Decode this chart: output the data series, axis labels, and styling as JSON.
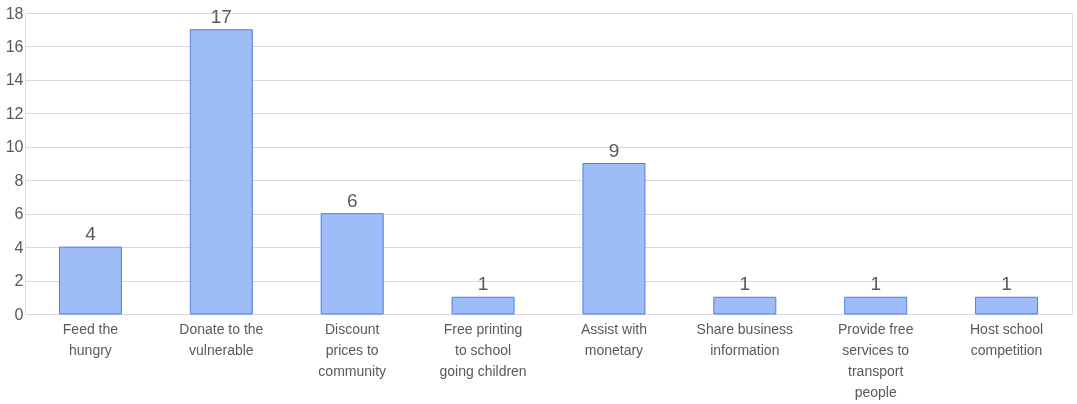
{
  "chart_data": {
    "type": "bar",
    "categories": [
      "Feed the hungry",
      "Donate to the vulnerable",
      "Discount prices to community",
      "Free printing to school going children",
      "Assist with monetary",
      "Share business information",
      "Provide free services to transport people",
      "Host school competition"
    ],
    "values": [
      4,
      17,
      6,
      1,
      9,
      1,
      1,
      1
    ],
    "color": "#9ebcf7",
    "ylim": [
      0,
      18
    ],
    "yticks": [
      0,
      2,
      4,
      6,
      8,
      10,
      12,
      14,
      16,
      18
    ],
    "grid": "y",
    "data_labels": true
  }
}
